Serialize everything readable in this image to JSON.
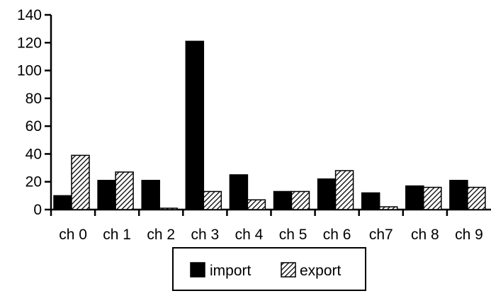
{
  "chart_data": {
    "type": "bar",
    "categories": [
      "ch 0",
      "ch 1",
      "ch 2",
      "ch 3",
      "ch 4",
      "ch 5",
      "ch 6",
      "ch7",
      "ch 8",
      "ch 9"
    ],
    "series": [
      {
        "name": "import",
        "values": [
          10,
          21,
          21,
          121,
          25,
          13,
          22,
          12,
          17,
          21
        ],
        "pattern": "solid",
        "color": "#000000"
      },
      {
        "name": "export",
        "values": [
          39,
          27,
          1,
          13,
          7,
          13,
          28,
          2,
          16,
          16
        ],
        "pattern": "diagonal-hatch",
        "color": "#000000"
      }
    ],
    "yticks": [
      0,
      20,
      40,
      60,
      80,
      100,
      120,
      140
    ],
    "ylim": [
      0,
      140
    ],
    "title": "",
    "xlabel": "",
    "ylabel": "",
    "grid": false,
    "legend_position": "bottom-center"
  }
}
